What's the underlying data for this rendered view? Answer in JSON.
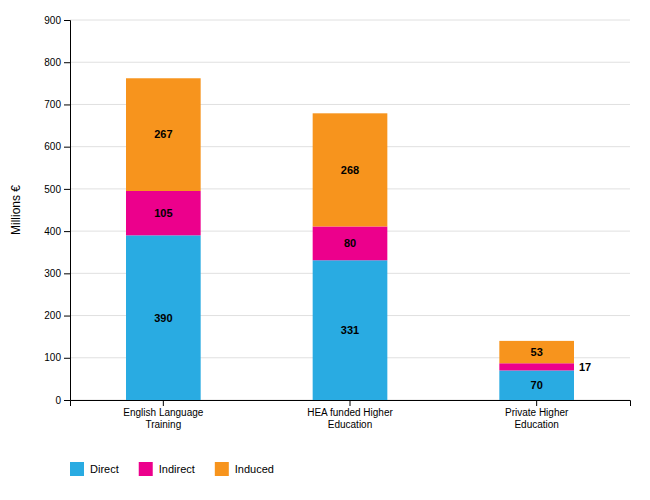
{
  "chart_data": {
    "type": "bar",
    "stacked": true,
    "categories": [
      "English Language\nTraining",
      "HEA funded Higher\nEducation",
      "Private Higher\nEducation"
    ],
    "series": [
      {
        "name": "Direct",
        "color": "#29ABE2",
        "values": [
          390,
          331,
          70
        ]
      },
      {
        "name": "Indirect",
        "color": "#EC008C",
        "values": [
          105,
          80,
          17
        ]
      },
      {
        "name": "Induced",
        "color": "#F7941D",
        "values": [
          267,
          268,
          53
        ]
      }
    ],
    "y_label": "Millions €",
    "ylim": [
      0,
      900
    ],
    "yticks": [
      0,
      100,
      200,
      300,
      400,
      500,
      600,
      700,
      800,
      900
    ],
    "grid": true,
    "legend": "bottom",
    "data_labels": true
  }
}
